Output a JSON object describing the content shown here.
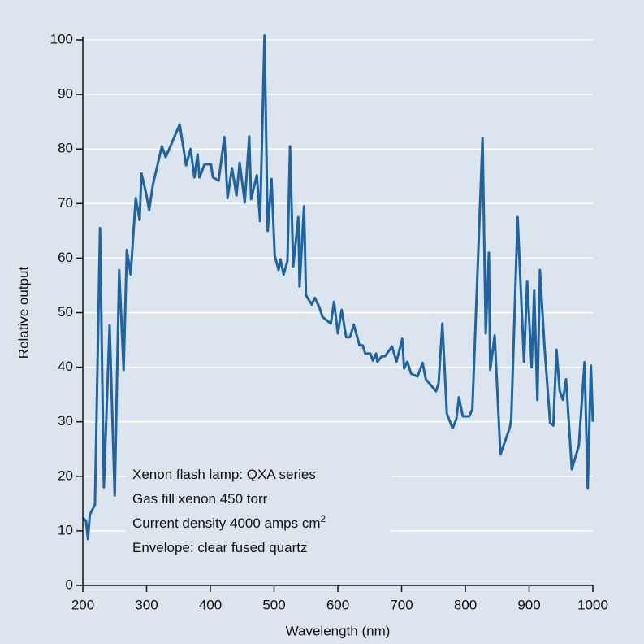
{
  "chart_data": {
    "type": "line",
    "x_label": "Wavelength (nm)",
    "y_label": "Relative output",
    "annotations": [
      {
        "text": "Xenon flash lamp: QXA series"
      },
      {
        "text": "Gas fill xenon 450 torr"
      },
      {
        "text": "Current density 4000 amps cm",
        "sup": "2"
      },
      {
        "text": "Envelope: clear fused quartz"
      }
    ],
    "xlim": [
      200,
      1000
    ],
    "ylim": [
      0,
      100
    ],
    "xticks": [
      200,
      300,
      400,
      500,
      600,
      700,
      800,
      900,
      1000
    ],
    "yticks": [
      0,
      10,
      20,
      30,
      40,
      50,
      60,
      70,
      80,
      90,
      100
    ],
    "grid": true,
    "series": [
      {
        "color": "#1f64a0",
        "x": [
          200,
          205,
          208,
          211,
          219,
          227,
          233,
          242,
          250,
          257,
          264,
          269,
          275,
          283,
          289,
          292,
          299,
          304,
          310,
          324,
          330,
          352,
          362,
          369,
          375,
          380,
          383,
          391,
          401,
          404,
          413,
          422,
          427,
          434,
          441,
          446,
          454,
          461,
          464,
          473,
          478,
          485,
          490,
          496,
          501,
          507,
          510,
          515,
          521,
          525,
          530,
          538,
          540,
          547,
          550,
          559,
          564,
          571,
          576,
          589,
          594,
          600,
          606,
          613,
          619,
          625,
          634,
          639,
          643,
          651,
          655,
          660,
          662,
          669,
          674,
          685,
          692,
          701,
          704,
          709,
          715,
          725,
          733,
          738,
          754,
          758,
          764,
          771,
          780,
          786,
          790,
          796,
          806,
          811,
          827,
          832,
          837,
          839,
          846,
          855,
          870,
          872,
          882,
          892,
          897,
          904,
          908,
          913,
          917,
          924,
          933,
          938,
          943,
          948,
          953,
          958,
          967,
          978,
          987,
          992,
          997,
          1000
        ],
        "values": [
          12.4,
          11.8,
          8.5,
          13,
          14.8,
          65.5,
          18,
          47.7,
          16.5,
          57.8,
          39.5,
          61.5,
          57,
          71,
          67,
          75.5,
          72,
          68.8,
          73.5,
          80.5,
          78.5,
          84.5,
          77,
          80,
          74.8,
          79,
          74.8,
          77.2,
          77.2,
          74.8,
          74.2,
          82.2,
          71,
          76.5,
          71.5,
          77.5,
          70.2,
          82.3,
          70.8,
          75.2,
          66.8,
          100.8,
          65,
          74.5,
          60.5,
          57.8,
          59.8,
          57,
          59.5,
          80.5,
          58.5,
          67.5,
          54.8,
          69.5,
          53.2,
          51.5,
          52.7,
          51,
          49.2,
          48,
          52,
          46.2,
          50.5,
          45.5,
          45.5,
          47.8,
          44,
          44,
          42.5,
          42.5,
          41.2,
          42.5,
          41,
          42,
          42,
          43.8,
          41,
          45.2,
          39.8,
          41,
          38.8,
          38.3,
          40.8,
          37.8,
          35.6,
          37,
          48,
          31.5,
          28.8,
          30.5,
          34.5,
          31,
          31,
          32.3,
          82,
          46.2,
          61,
          39.5,
          45.8,
          24,
          29,
          30.5,
          67.5,
          41,
          55.8,
          40,
          54,
          34,
          57.8,
          44,
          29.8,
          29.3,
          43.2,
          35.7,
          34,
          37.8,
          21.3,
          25.6,
          40.9,
          17.9,
          40.3,
          30
        ]
      }
    ]
  }
}
